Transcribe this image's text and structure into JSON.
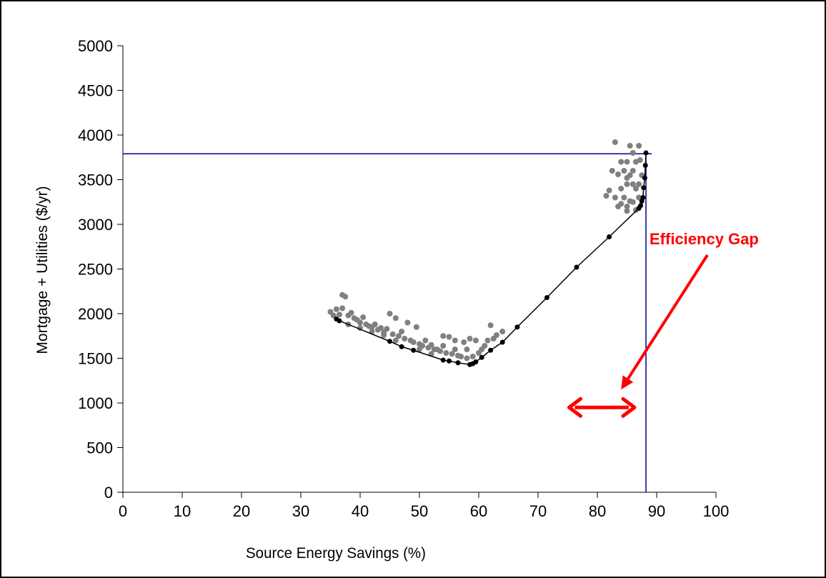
{
  "chart_data": {
    "type": "scatter",
    "xlabel": "Source Energy Savings (%)",
    "ylabel": "Mortgage + Utilities ($/yr)",
    "xlim": [
      0,
      100
    ],
    "ylim": [
      0,
      5000
    ],
    "x_ticks": [
      "0",
      "10",
      "20",
      "30",
      "40",
      "50",
      "60",
      "70",
      "80",
      "90",
      "100"
    ],
    "y_ticks": [
      "0",
      "500",
      "1000",
      "1500",
      "2000",
      "2500",
      "3000",
      "3500",
      "4000",
      "4500",
      "5000"
    ],
    "grid": false,
    "series": [
      {
        "color": "#808080",
        "points": [
          [
            35,
            2020
          ],
          [
            35.5,
            1980
          ],
          [
            36,
            2050
          ],
          [
            36.5,
            1990
          ],
          [
            37,
            2210
          ],
          [
            37.5,
            2190
          ],
          [
            37,
            2060
          ],
          [
            38,
            1980
          ],
          [
            38.5,
            2010
          ],
          [
            39,
            1950
          ],
          [
            39.5,
            1930
          ],
          [
            40,
            1900
          ],
          [
            40.5,
            1960
          ],
          [
            41,
            1880
          ],
          [
            41.5,
            1860
          ],
          [
            42,
            1850
          ],
          [
            42.5,
            1880
          ],
          [
            43,
            1820
          ],
          [
            43.5,
            1840
          ],
          [
            44,
            1790
          ],
          [
            44.5,
            1830
          ],
          [
            45,
            2000
          ],
          [
            45.5,
            1770
          ],
          [
            46,
            1950
          ],
          [
            46.5,
            1750
          ],
          [
            47,
            1800
          ],
          [
            47.5,
            1720
          ],
          [
            48,
            1900
          ],
          [
            48.5,
            1700
          ],
          [
            49,
            1680
          ],
          [
            49.5,
            1850
          ],
          [
            50,
            1660
          ],
          [
            50.5,
            1640
          ],
          [
            51,
            1700
          ],
          [
            51.5,
            1620
          ],
          [
            52,
            1650
          ],
          [
            52.5,
            1600
          ],
          [
            53,
            1600
          ],
          [
            53.5,
            1580
          ],
          [
            54,
            1750
          ],
          [
            54.5,
            1560
          ],
          [
            55,
            1740
          ],
          [
            55.5,
            1550
          ],
          [
            56,
            1700
          ],
          [
            56.5,
            1530
          ],
          [
            57,
            1520
          ],
          [
            57.5,
            1680
          ],
          [
            58,
            1500
          ],
          [
            58.5,
            1720
          ],
          [
            59,
            1520
          ],
          [
            59.5,
            1700
          ],
          [
            60,
            1560
          ],
          [
            60.5,
            1600
          ],
          [
            61,
            1640
          ],
          [
            61.5,
            1700
          ],
          [
            62,
            1870
          ],
          [
            62.5,
            1720
          ],
          [
            63,
            1760
          ],
          [
            64,
            1800
          ],
          [
            52,
            1550
          ],
          [
            56,
            1600
          ],
          [
            58,
            1600
          ],
          [
            54,
            1640
          ],
          [
            50,
            1600
          ],
          [
            46,
            1700
          ],
          [
            44,
            1760
          ],
          [
            42,
            1800
          ],
          [
            40,
            1840
          ],
          [
            38,
            1880
          ],
          [
            81.5,
            3320
          ],
          [
            82,
            3380
          ],
          [
            82.5,
            3600
          ],
          [
            83,
            3920
          ],
          [
            83.5,
            3560
          ],
          [
            83,
            3300
          ],
          [
            84,
            3230
          ],
          [
            84.5,
            3300
          ],
          [
            85,
            3520
          ],
          [
            85.5,
            3880
          ],
          [
            85,
            3200
          ],
          [
            86,
            3800
          ],
          [
            86.5,
            3400
          ],
          [
            86,
            3600
          ],
          [
            87,
            3880
          ],
          [
            87.2,
            3720
          ],
          [
            87.5,
            3550
          ],
          [
            84,
            3700
          ],
          [
            85.5,
            3260
          ],
          [
            86.5,
            3160
          ],
          [
            87,
            3300
          ],
          [
            85,
            3450
          ],
          [
            84.5,
            3600
          ],
          [
            83.5,
            3200
          ],
          [
            86,
            3450
          ],
          [
            85,
            3700
          ],
          [
            84,
            3400
          ],
          [
            86.5,
            3700
          ],
          [
            85.5,
            3550
          ],
          [
            86,
            3250
          ],
          [
            85,
            3150
          ],
          [
            87,
            3450
          ]
        ]
      },
      {
        "color": "#000000",
        "points": [
          [
            36,
            1940
          ],
          [
            36.5,
            1920
          ],
          [
            45,
            1690
          ],
          [
            47,
            1630
          ],
          [
            49,
            1590
          ],
          [
            54,
            1480
          ],
          [
            55,
            1470
          ],
          [
            56.5,
            1450
          ],
          [
            58.5,
            1430
          ],
          [
            59,
            1440
          ],
          [
            59.5,
            1460
          ],
          [
            60.5,
            1510
          ],
          [
            62,
            1590
          ],
          [
            64,
            1680
          ],
          [
            66.5,
            1850
          ],
          [
            71.5,
            2180
          ],
          [
            76.5,
            2520
          ],
          [
            82,
            2860
          ],
          [
            87,
            3180
          ],
          [
            87.3,
            3210
          ],
          [
            87.5,
            3260
          ],
          [
            87.7,
            3300
          ],
          [
            87.8,
            3410
          ],
          [
            88,
            3520
          ],
          [
            88.1,
            3660
          ],
          [
            88.2,
            3800
          ]
        ]
      }
    ],
    "reference_lines": [
      {
        "orientation": "horizontal",
        "y": 3790,
        "x_range": [
          0,
          88.2
        ],
        "color": "#00008B"
      },
      {
        "orientation": "vertical",
        "x": 88.2,
        "y_range": [
          0,
          3790
        ],
        "color": "#00008B"
      }
    ],
    "annotation": {
      "text": "Efficiency Gap",
      "color": "#FF0000",
      "arrow_target": [
        84,
        1150
      ],
      "double_arrow_x": [
        75,
        86.5
      ],
      "double_arrow_y": 950
    }
  }
}
